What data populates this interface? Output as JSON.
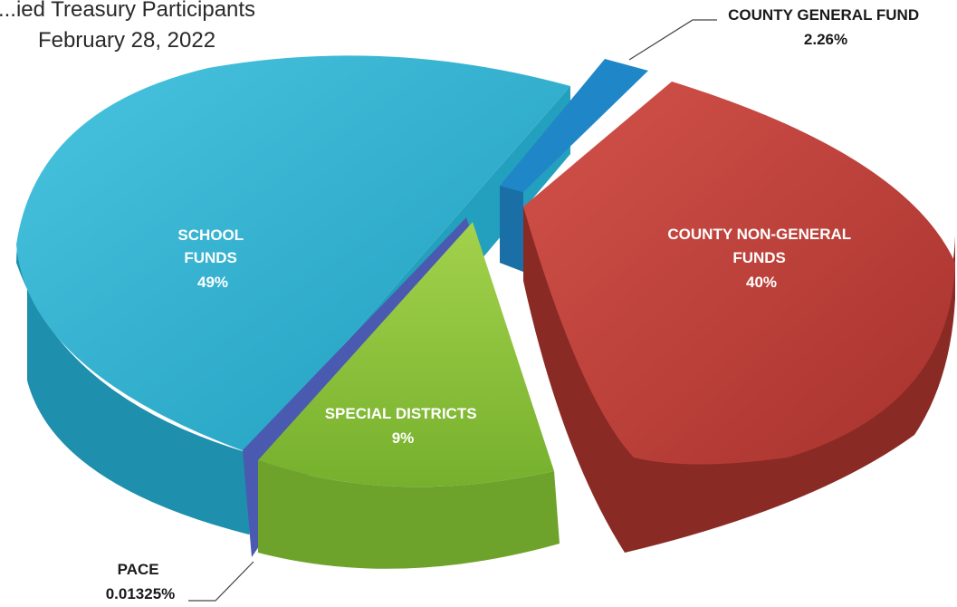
{
  "chart_data": {
    "type": "pie",
    "title": "...ied Treasury Participants",
    "subtitle": "February 28, 2022",
    "slices": [
      {
        "name": "SCHOOL FUNDS",
        "label_lines": [
          "SCHOOL",
          "FUNDS",
          "49%"
        ],
        "value_label": "49%",
        "value": 49,
        "color": "#2bb1cf"
      },
      {
        "name": "COUNTY GENERAL FUND",
        "label_lines": [
          "COUNTY GENERAL FUND",
          "2.26%"
        ],
        "value_label": "2.26%",
        "value": 2.26,
        "color": "#1f87c8"
      },
      {
        "name": "COUNTY NON-GENERAL FUNDS",
        "label_lines": [
          "COUNTY NON-GENERAL",
          "FUNDS",
          "40%"
        ],
        "value_label": "40%",
        "value": 40,
        "color": "#c2413b"
      },
      {
        "name": "SPECIAL DISTRICTS",
        "label_lines": [
          "SPECIAL DISTRICTS",
          "9%"
        ],
        "value_label": "9%",
        "value": 9,
        "color": "#8cc43a"
      },
      {
        "name": "PACE",
        "label_lines": [
          "PACE",
          "0.01325%"
        ],
        "value_label": "0.01325%",
        "value": 0.01325,
        "color": "#4a5ab0"
      }
    ],
    "style": "3d-exploded"
  }
}
